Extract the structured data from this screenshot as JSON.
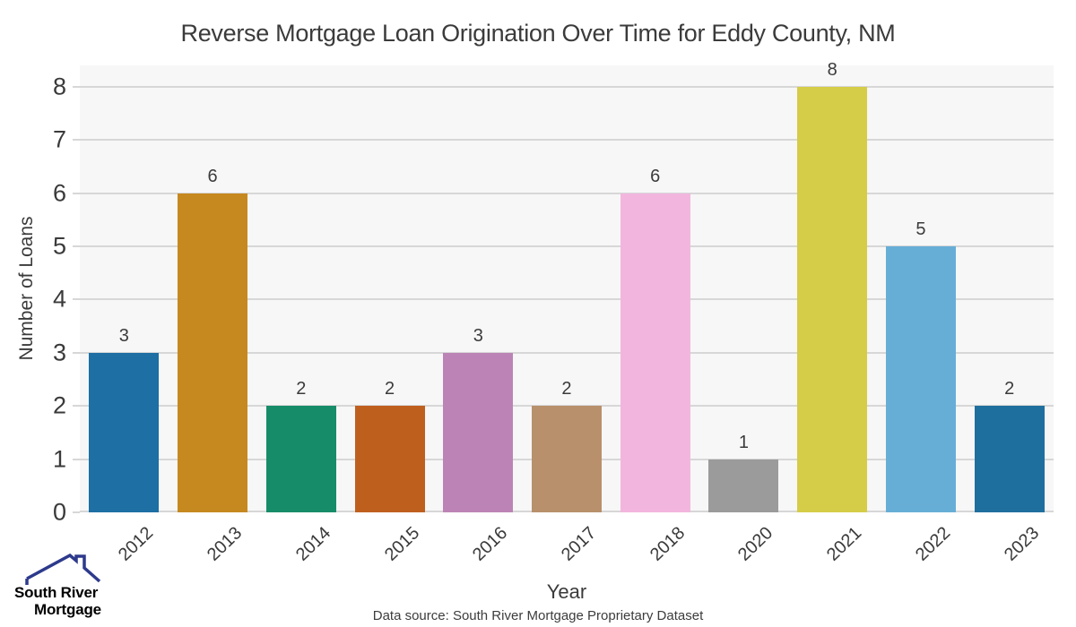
{
  "chart_data": {
    "type": "bar",
    "title": "Reverse Mortgage Loan Origination Over Time for Eddy County, NM",
    "xlabel": "Year",
    "ylabel": "Number of Loans",
    "categories": [
      "2012",
      "2013",
      "2014",
      "2015",
      "2016",
      "2017",
      "2018",
      "2020",
      "2021",
      "2022",
      "2023"
    ],
    "values": [
      3,
      6,
      2,
      2,
      3,
      2,
      6,
      1,
      8,
      5,
      2
    ],
    "bar_colors": [
      "#1d6fa4",
      "#c6891f",
      "#178c69",
      "#bf5f1e",
      "#bc84b6",
      "#b8906c",
      "#f2b6de",
      "#9b9b9b",
      "#d5cc47",
      "#67aed7",
      "#1f6f9e"
    ],
    "yticks": [
      0,
      1,
      2,
      3,
      4,
      5,
      6,
      7,
      8
    ],
    "ylim": [
      0,
      8.4
    ],
    "grid": true,
    "legend": false,
    "plot_bg_color": "#f7f7f7",
    "grid_color": "#d7d7d7"
  },
  "footer": {
    "source": "Data source: South River Mortgage Proprietary Dataset"
  },
  "logo": {
    "icon": "house-roof-icon",
    "line1": "South River",
    "line2": "Mortgage",
    "line1_color": "#4a6ab3",
    "line2_color": "#2b2f72",
    "roof_color": "#2d3a8c"
  }
}
